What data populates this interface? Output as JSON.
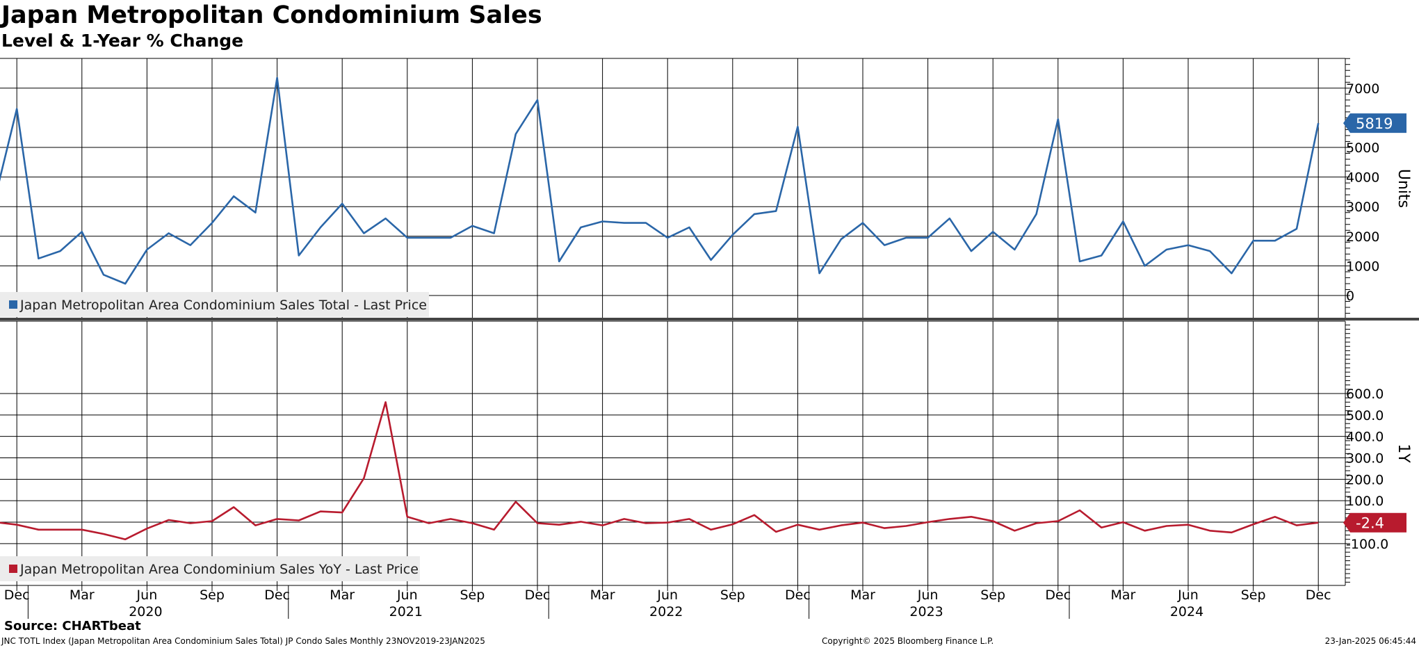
{
  "header": {
    "title": "Japan Metropolitan Condominium Sales",
    "subtitle": "Level & 1-Year % Change"
  },
  "footer": {
    "source": "Source: CHARTbeat",
    "ticker": "JNC TOTL Index (Japan Metropolitan Area Condominium Sales Total) JP Condo Sales  Monthly 23NOV2019-23JAN2025",
    "copyright": "Copyright© 2025 Bloomberg Finance L.P.",
    "date": "23-Jan-2025 06:45:44"
  },
  "colors": {
    "level": "#2a66a8",
    "yoy": "#b81b2e",
    "grid": "#000000"
  },
  "chart_data": [
    {
      "type": "line",
      "panel": "top",
      "ylabel": "Units",
      "ylim": [
        -300,
        8200
      ],
      "yticks": [
        0,
        1000,
        2000,
        3000,
        4000,
        5000,
        7000
      ],
      "grid": true,
      "legend": "bottom-left",
      "last_value_label": "5819",
      "series": [
        {
          "name": "Japan Metropolitan Area Condominium Sales Total - Last Price",
          "x": [
            "2019-11",
            "2019-12",
            "2020-01",
            "2020-02",
            "2020-03",
            "2020-04",
            "2020-05",
            "2020-06",
            "2020-07",
            "2020-08",
            "2020-09",
            "2020-10",
            "2020-11",
            "2020-12",
            "2021-01",
            "2021-02",
            "2021-03",
            "2021-04",
            "2021-05",
            "2021-06",
            "2021-07",
            "2021-08",
            "2021-09",
            "2021-10",
            "2021-11",
            "2021-12",
            "2022-01",
            "2022-02",
            "2022-03",
            "2022-04",
            "2022-05",
            "2022-06",
            "2022-07",
            "2022-08",
            "2022-09",
            "2022-10",
            "2022-11",
            "2022-12",
            "2023-01",
            "2023-02",
            "2023-03",
            "2023-04",
            "2023-05",
            "2023-06",
            "2023-07",
            "2023-08",
            "2023-09",
            "2023-10",
            "2023-11",
            "2023-12",
            "2024-01",
            "2024-02",
            "2024-03",
            "2024-04",
            "2024-05",
            "2024-06",
            "2024-07",
            "2024-08",
            "2024-09",
            "2024-10",
            "2024-11",
            "2024-12"
          ],
          "values": [
            3300,
            6300,
            1250,
            1500,
            2150,
            700,
            400,
            1550,
            2100,
            1700,
            2450,
            3350,
            2800,
            7350,
            1350,
            2300,
            3100,
            2100,
            2600,
            1950,
            1950,
            1950,
            2350,
            2100,
            5450,
            6600,
            1150,
            2300,
            2500,
            2450,
            2450,
            1950,
            2300,
            1200,
            2050,
            2750,
            2850,
            5700,
            750,
            1900,
            2450,
            1700,
            1950,
            1950,
            2600,
            1500,
            2150,
            1550,
            2750,
            5950,
            1150,
            1350,
            2500,
            1000,
            1550,
            1700,
            1500,
            750,
            1850,
            1850,
            2250,
            5819
          ]
        }
      ]
    },
    {
      "type": "line",
      "panel": "bottom",
      "ylabel": "1Y",
      "ylim": [
        -137,
        620
      ],
      "yticks": [
        -100.0,
        100.0,
        200.0,
        300.0,
        400.0,
        500.0,
        600.0
      ],
      "grid": true,
      "legend": "bottom-left",
      "last_value_label": "-2.4",
      "series": [
        {
          "name": "Japan Metropolitan Area Condominium Sales YoY - Last Price",
          "x": [
            "2019-11",
            "2019-12",
            "2020-01",
            "2020-02",
            "2020-03",
            "2020-04",
            "2020-05",
            "2020-06",
            "2020-07",
            "2020-08",
            "2020-09",
            "2020-10",
            "2020-11",
            "2020-12",
            "2021-01",
            "2021-02",
            "2021-03",
            "2021-04",
            "2021-05",
            "2021-06",
            "2021-07",
            "2021-08",
            "2021-09",
            "2021-10",
            "2021-11",
            "2021-12",
            "2022-01",
            "2022-02",
            "2022-03",
            "2022-04",
            "2022-05",
            "2022-06",
            "2022-07",
            "2022-08",
            "2022-09",
            "2022-10",
            "2022-11",
            "2022-12",
            "2023-01",
            "2023-02",
            "2023-03",
            "2023-04",
            "2023-05",
            "2023-06",
            "2023-07",
            "2023-08",
            "2023-09",
            "2023-10",
            "2023-11",
            "2023-12",
            "2024-01",
            "2024-02",
            "2024-03",
            "2024-04",
            "2024-05",
            "2024-06",
            "2024-07",
            "2024-08",
            "2024-09",
            "2024-10",
            "2024-11",
            "2024-12"
          ],
          "values": [
            0,
            -12,
            -35,
            -35,
            -35,
            -55,
            -80,
            -30,
            10,
            -5,
            5,
            70,
            -15,
            15,
            8,
            50,
            45,
            205,
            560,
            25,
            -5,
            15,
            -5,
            -35,
            95,
            -5,
            -12,
            2,
            -15,
            15,
            -5,
            -2,
            15,
            -35,
            -10,
            33,
            -45,
            -12,
            -35,
            -15,
            -2,
            -28,
            -18,
            0,
            15,
            25,
            5,
            -40,
            -5,
            5,
            55,
            -25,
            0,
            -40,
            -18,
            -12,
            -40,
            -48,
            -10,
            25,
            -15,
            -2.4
          ]
        }
      ]
    }
  ],
  "x_axis": {
    "month_labels": [
      "Dec",
      "Mar",
      "Jun",
      "Sep",
      "Dec",
      "Mar",
      "Jun",
      "Sep",
      "Dec",
      "Mar",
      "Jun",
      "Sep",
      "Dec",
      "Mar",
      "Jun",
      "Sep",
      "Dec",
      "Mar",
      "Jun",
      "Sep",
      "Dec"
    ],
    "year_labels": [
      "2020",
      "2021",
      "2022",
      "2023",
      "2024"
    ]
  }
}
